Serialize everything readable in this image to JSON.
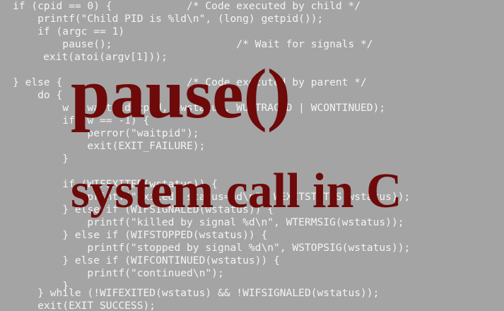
{
  "background_color": "#a4a4a4",
  "code_color": "#f4f4f4",
  "headline_color": "#6e0a0a",
  "headline": {
    "title": "pause()",
    "subtitle": "system call in C"
  },
  "code_lines": [
    "if (cpid == 0) {            /* Code executed by child */",
    "    printf(\"Child PID is %ld\\n\", (long) getpid());",
    "    if (argc == 1)",
    "        pause();                    /* Wait for signals */",
    "    exit(atoi(argv[1]));",
    "",
    "} else {                    /* Code executed by parent */",
    "    do {",
    "        w = waitpid(cpid, &wstatus, WUNTRACED | WCONTINUED);",
    "        if (w == -1) {",
    "            perror(\"waitpid\");",
    "            exit(EXIT_FAILURE);",
    "        }",
    "",
    "        if (WIFEXITED(wstatus)) {",
    "            printf(\"exited, status=%d\\n\", WEXITSTATUS(wstatus));",
    "        } else if (WIFSIGNALED(wstatus)) {",
    "            printf(\"killed by signal %d\\n\", WTERMSIG(wstatus));",
    "        } else if (WIFSTOPPED(wstatus)) {",
    "            printf(\"stopped by signal %d\\n\", WSTOPSIG(wstatus));",
    "        } else if (WIFCONTINUED(wstatus)) {",
    "            printf(\"continued\\n\");",
    "        }",
    "    } while (!WIFEXITED(wstatus) && !WIFSIGNALED(wstatus));",
    "    exit(EXIT_SUCCESS);"
  ]
}
